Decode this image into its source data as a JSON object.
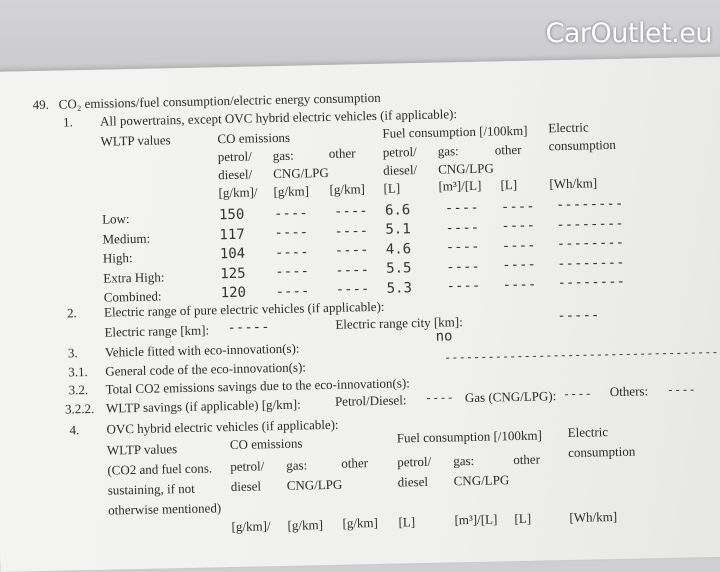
{
  "section": {
    "number": "49.",
    "title": "CO₂ emissions/fuel consumption/electric energy consumption"
  },
  "item1": {
    "number": "1.",
    "title": "All powertrains, except OVC hybrid electric vehicles (if applicable):",
    "wltp_label": "WLTP values",
    "co_header": "CO emissions",
    "fuel_header": "Fuel consumption [/100km]",
    "elec_header": "Electric",
    "elec_header2": "consumption",
    "sub1": [
      "petrol/",
      "gas:",
      "other",
      "petrol/",
      "gas:",
      "other"
    ],
    "sub2": [
      "diesel/",
      "CNG/LPG",
      "diesel/",
      "CNG/LPG"
    ],
    "units": [
      "[g/km]/",
      "[g/km]",
      "[g/km]",
      "[L]",
      "[m³]/[L]",
      "[L]",
      "[Wh/km]"
    ],
    "rows": [
      {
        "label": "Low:",
        "co": "150",
        "gas": "----",
        "other": "----",
        "fuel": "6.6",
        "fgas": "----",
        "fother": "----",
        "elec": "--------"
      },
      {
        "label": "Medium:",
        "co": "117",
        "gas": "----",
        "other": "----",
        "fuel": "5.1",
        "fgas": "----",
        "fother": "----",
        "elec": "--------"
      },
      {
        "label": "High:",
        "co": "104",
        "gas": "----",
        "other": "----",
        "fuel": "4.6",
        "fgas": "----",
        "fother": "----",
        "elec": "--------"
      },
      {
        "label": "Extra High:",
        "co": "125",
        "gas": "----",
        "other": "----",
        "fuel": "5.5",
        "fgas": "----",
        "fother": "----",
        "elec": "--------"
      },
      {
        "label": "Combined:",
        "co": "120",
        "gas": "----",
        "other": "----",
        "fuel": "5.3",
        "fgas": "----",
        "fother": "----",
        "elec": "--------"
      }
    ]
  },
  "item2": {
    "number": "2.",
    "title": "Electric range of pure electric vehicles (if applicable):",
    "range_label": "Electric range [km]:",
    "range_value": "-----",
    "city_label": "Electric range city [km]:",
    "city_value": "-----"
  },
  "item3": {
    "number": "3.",
    "title": "Vehicle fitted with eco-innovation(s):",
    "value": "no"
  },
  "item31": {
    "number": "3.1.",
    "title": "General code of the eco-innovation(s):",
    "value": "------------------------------------------"
  },
  "item32": {
    "number": "3.2.",
    "title": "Total CO2 emissions savings due to the eco-innovation(s):"
  },
  "item322": {
    "number": "3.2.2.",
    "title": "WLTP savings (if applicable) [g/km]:",
    "petrol_label": "Petrol/Diesel:",
    "petrol_value": "----",
    "gas_label": "Gas (CNG/LPG):",
    "gas_value": "----",
    "others_label": "Others:",
    "others_value": "----"
  },
  "item4": {
    "number": "4.",
    "title": "OVC hybrid electric vehicles (if applicable):",
    "wltp_lines": [
      "WLTP values",
      "(CO2 and fuel cons.",
      "sustaining, if not",
      "otherwise mentioned)"
    ],
    "co_header": "CO emissions",
    "fuel_header": "Fuel consumption [/100km]",
    "elec_header": "Electric",
    "elec_header2": "consumption",
    "sub1": [
      "petrol/",
      "gas:",
      "other",
      "petrol/",
      "gas:",
      "other"
    ],
    "sub2": [
      "diesel",
      "CNG/LPG",
      "diesel",
      "CNG/LPG"
    ],
    "units": [
      "[g/km]/",
      "[g/km]",
      "[g/km]",
      "[L]",
      "[m³]/[L]",
      "[L]",
      "[Wh/km]"
    ]
  },
  "watermark": "CarOutlet.eu"
}
